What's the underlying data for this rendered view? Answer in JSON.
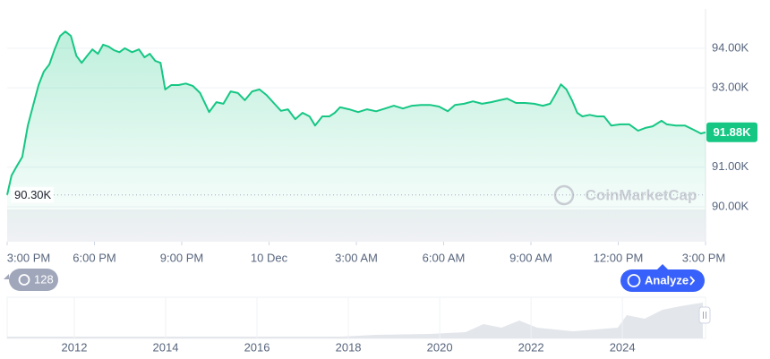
{
  "chart_data": {
    "type": "line",
    "color": "#16c784",
    "x": [
      0,
      0.15,
      0.34,
      0.52,
      0.71,
      0.89,
      1.08,
      1.26,
      1.45,
      1.63,
      1.82,
      2.0,
      2.19,
      2.38,
      2.56,
      2.75,
      2.93,
      3.12,
      3.3,
      3.49,
      3.67,
      3.86,
      4.04,
      4.29,
      4.53,
      4.72,
      4.9,
      5.09,
      5.27,
      5.43,
      5.64,
      5.89,
      6.14,
      6.38,
      6.63,
      6.94,
      7.19,
      7.43,
      7.68,
      7.93,
      8.17,
      8.42,
      8.67,
      8.91,
      9.16,
      9.41,
      9.65,
      9.9,
      10.15,
      10.39,
      10.58,
      10.83,
      11.07,
      11.26,
      11.44,
      11.75,
      12.06,
      12.37,
      12.68,
      12.99,
      13.29,
      13.6,
      13.91,
      14.22,
      14.53,
      14.84,
      15.14,
      15.39,
      15.7,
      16.01,
      16.32,
      16.63,
      16.93,
      17.18,
      17.49,
      17.8,
      18.11,
      18.41,
      18.66,
      18.85,
      19.03,
      19.22,
      19.41,
      19.59,
      19.77,
      20.02,
      20.27,
      20.51,
      20.76,
      21.07,
      21.38,
      21.68,
      21.93,
      22.18,
      22.49,
      22.67,
      22.98,
      23.29,
      23.6,
      23.84,
      24
    ],
    "values": [
      90300,
      90790,
      91040,
      91260,
      92050,
      92550,
      93070,
      93410,
      93590,
      93970,
      94310,
      94420,
      94310,
      93810,
      93630,
      93810,
      93970,
      93860,
      94090,
      94040,
      93950,
      93900,
      94000,
      93900,
      93970,
      93770,
      93860,
      93680,
      93630,
      92960,
      93070,
      93070,
      93110,
      93050,
      92870,
      92390,
      92640,
      92600,
      92910,
      92870,
      92690,
      92910,
      92960,
      92820,
      92620,
      92420,
      92460,
      92210,
      92370,
      92280,
      92050,
      92280,
      92280,
      92370,
      92510,
      92460,
      92390,
      92460,
      92410,
      92480,
      92550,
      92480,
      92550,
      92570,
      92570,
      92530,
      92410,
      92570,
      92600,
      92660,
      92600,
      92640,
      92690,
      92730,
      92620,
      92620,
      92600,
      92550,
      92600,
      92840,
      93090,
      92960,
      92690,
      92370,
      92280,
      92320,
      92280,
      92280,
      92050,
      92080,
      92080,
      91920,
      91990,
      92030,
      92170,
      92080,
      92050,
      92050,
      91940,
      91850,
      91880
    ],
    "xlim": [
      0,
      24
    ],
    "xticks": [
      {
        "value": 0,
        "label": "3:00 PM"
      },
      {
        "value": 3,
        "label": "6:00 PM"
      },
      {
        "value": 6,
        "label": "9:00 PM"
      },
      {
        "value": 9,
        "label": "10 Dec"
      },
      {
        "value": 12,
        "label": "3:00 AM"
      },
      {
        "value": 15,
        "label": "6:00 AM"
      },
      {
        "value": 18,
        "label": "9:00 AM"
      },
      {
        "value": 21,
        "label": "12:00 PM"
      },
      {
        "value": 24,
        "label": "3:00 PM"
      }
    ],
    "ylim": [
      89120,
      94990
    ],
    "yticks": [
      {
        "value": 90000,
        "label": "90.00K"
      },
      {
        "value": 91000,
        "label": "91.00K"
      },
      {
        "value": 93000,
        "label": "93.00K"
      },
      {
        "value": 94000,
        "label": "94.00K"
      }
    ],
    "grid": true,
    "low_label": {
      "value": 90300,
      "label": "90.30K"
    },
    "current_price": {
      "value": 91880,
      "label": "91.88K"
    },
    "watermark": "CoinMarketCap",
    "history_badge": 128,
    "analyze_button": "Analyze",
    "navigator": {
      "xlim": [
        2010.53,
        2025.82
      ],
      "xticks": [
        2012,
        2014,
        2016,
        2018,
        2020,
        2022,
        2024
      ]
    }
  }
}
